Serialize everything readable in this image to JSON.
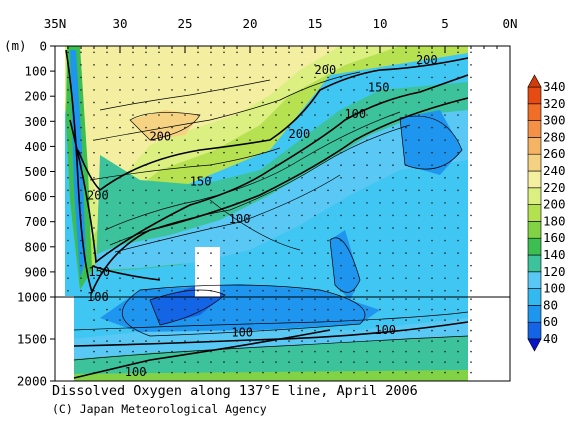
{
  "chart_data": {
    "type": "heatmap",
    "title": "Dissolved Oxygen along 137°E line, April 2006",
    "credit": "(C) Japan Meteorological Agency",
    "x_axis": {
      "ticks": [
        "35N",
        "30",
        "25",
        "20",
        "15",
        "10",
        "5",
        "0N"
      ],
      "values": [
        35,
        30,
        25,
        20,
        15,
        10,
        5,
        0
      ],
      "range": [
        35,
        0
      ]
    },
    "y_axis": {
      "unit_label": "(m)",
      "upper_ticks": [
        0,
        100,
        200,
        300,
        400,
        500,
        600,
        700,
        800,
        900,
        1000
      ],
      "lower_ticks": [
        1500,
        2000
      ],
      "upper_range": [
        0,
        1000
      ],
      "lower_range": [
        1000,
        2000
      ]
    },
    "colorbar": {
      "levels": [
        40,
        60,
        80,
        100,
        120,
        140,
        160,
        180,
        200,
        220,
        240,
        260,
        280,
        300,
        320,
        340
      ],
      "colors": [
        "#0a14c8",
        "#1464e6",
        "#1e96f0",
        "#32b9f0",
        "#5ac8f5",
        "#3cc39b",
        "#3cbe50",
        "#82d246",
        "#b4e150",
        "#dcf082",
        "#f5f0a0",
        "#f5d282",
        "#f5b464",
        "#f59146",
        "#f06e28",
        "#e64b14",
        "#d23c0a"
      ]
    },
    "contour_labels": [
      {
        "value": "200",
        "lat": 14.2,
        "depth": 95
      },
      {
        "value": "200",
        "lat": 6.4,
        "depth": 55
      },
      {
        "value": "150",
        "lat": 10.1,
        "depth": 165
      },
      {
        "value": "100",
        "lat": 11.9,
        "depth": 270
      },
      {
        "value": "200",
        "lat": 26.9,
        "depth": 360
      },
      {
        "value": "200",
        "lat": 16.2,
        "depth": 350
      },
      {
        "value": "150",
        "lat": 23.8,
        "depth": 540
      },
      {
        "value": "100",
        "lat": 20.8,
        "depth": 690
      },
      {
        "value": "200",
        "lat": 31.7,
        "depth": 595
      },
      {
        "value": "150",
        "lat": 31.6,
        "depth": 900
      },
      {
        "value": "100",
        "lat": 31.7,
        "depth": 1000
      },
      {
        "value": "100",
        "lat": 20.6,
        "depth": 1420
      },
      {
        "value": "100",
        "lat": 9.6,
        "depth": 1395
      },
      {
        "value": "100",
        "lat": 28.8,
        "depth": 1895
      }
    ]
  }
}
